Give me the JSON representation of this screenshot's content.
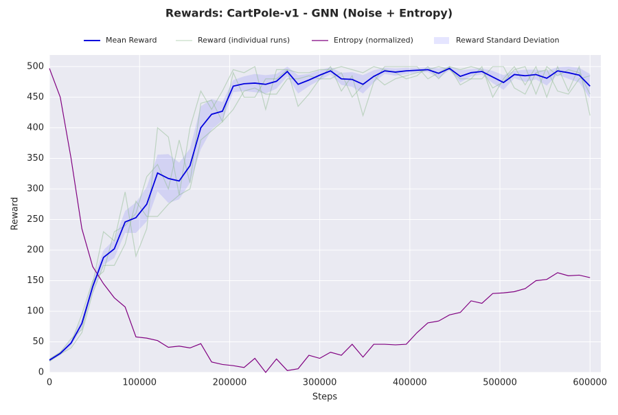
{
  "chart_data": {
    "type": "line",
    "title": "Rewards: CartPole-v1 - GNN (Noise + Entropy)",
    "xlabel": "Steps",
    "ylabel": "Reward",
    "x": [
      0,
      12000,
      24000,
      36000,
      48000,
      60000,
      72000,
      84000,
      96000,
      108000,
      120000,
      132000,
      144000,
      156000,
      168000,
      180000,
      192000,
      204000,
      216000,
      228000,
      240000,
      252000,
      264000,
      276000,
      288000,
      300000,
      312000,
      324000,
      336000,
      348000,
      360000,
      372000,
      384000,
      396000,
      408000,
      420000,
      432000,
      444000,
      456000,
      468000,
      480000,
      492000,
      504000,
      516000,
      528000,
      540000,
      552000,
      564000,
      576000,
      588000,
      600000
    ],
    "xlim": [
      0,
      612000
    ],
    "xticks": [
      0,
      100000,
      200000,
      300000,
      400000,
      500000,
      600000
    ],
    "ylim": [
      0,
      519
    ],
    "yticks": [
      0,
      50,
      100,
      150,
      200,
      250,
      300,
      350,
      400,
      450,
      500
    ],
    "grid": true,
    "legend": "top",
    "series": [
      {
        "name": "Mean Reward",
        "color": "#0000dd",
        "values": [
          20,
          31,
          48,
          80,
          140,
          188,
          202,
          246,
          253,
          275,
          326,
          317,
          313,
          338,
          400,
          422,
          427,
          468,
          472,
          473,
          471,
          476,
          492,
          471,
          478,
          486,
          493,
          480,
          479,
          471,
          484,
          493,
          491,
          493,
          494,
          495,
          489,
          497,
          484,
          490,
          492,
          483,
          474,
          487,
          485,
          487,
          481,
          493,
          490,
          486,
          468
        ]
      },
      {
        "name": "Reward (individual runs)",
        "color": "#8fbc8f",
        "runs": [
          [
            22,
            33,
            55,
            70,
            145,
            230,
            215,
            295,
            190,
            235,
            400,
            385,
            290,
            400,
            460,
            430,
            460,
            495,
            490,
            500,
            430,
            495,
            495,
            435,
            455,
            480,
            500,
            460,
            485,
            420,
            475,
            500,
            500,
            500,
            500,
            480,
            490,
            500,
            470,
            480,
            500,
            450,
            480,
            500,
            470,
            500,
            450,
            500,
            460,
            500,
            420
          ],
          [
            18,
            30,
            40,
            65,
            130,
            175,
            175,
            210,
            280,
            255,
            255,
            275,
            290,
            300,
            380,
            395,
            410,
            430,
            460,
            465,
            455,
            455,
            480,
            480,
            485,
            480,
            480,
            490,
            450,
            470,
            485,
            470,
            480,
            485,
            490,
            495,
            500,
            495,
            480,
            480,
            480,
            500,
            500,
            465,
            455,
            490,
            495,
            460,
            455,
            480,
            485
          ],
          [
            20,
            32,
            48,
            95,
            150,
            165,
            230,
            240,
            260,
            320,
            340,
            300,
            380,
            310,
            440,
            445,
            410,
            490,
            450,
            450,
            480,
            480,
            495,
            490,
            490,
            495,
            495,
            500,
            495,
            490,
            500,
            495,
            490,
            480,
            485,
            500,
            480,
            500,
            495,
            500,
            495,
            465,
            475,
            495,
            500,
            455,
            500,
            485,
            495,
            490,
            455
          ]
        ]
      },
      {
        "name": "Entropy (normalized)",
        "color": "#800080",
        "values": [
          497,
          450,
          350,
          235,
          173,
          145,
          122,
          107,
          58,
          56,
          52,
          41,
          43,
          40,
          47,
          17,
          13,
          11,
          8,
          23,
          0,
          22,
          3,
          6,
          28,
          23,
          33,
          28,
          46,
          25,
          46,
          46,
          45,
          46,
          65,
          81,
          84,
          94,
          98,
          117,
          113,
          129,
          130,
          132,
          137,
          150,
          152,
          163,
          158,
          159,
          155
        ]
      },
      {
        "name": "Reward Standard Deviation",
        "color": "#0000ff",
        "values": [
          2,
          3,
          5,
          8,
          10,
          12,
          15,
          18,
          25,
          28,
          30,
          40,
          30,
          28,
          35,
          25,
          15,
          10,
          12,
          15,
          15,
          12,
          8,
          15,
          10,
          8,
          6,
          10,
          12,
          15,
          10,
          5,
          6,
          5,
          4,
          4,
          8,
          3,
          10,
          6,
          5,
          10,
          12,
          6,
          10,
          8,
          12,
          6,
          10,
          12,
          20
        ]
      }
    ]
  }
}
